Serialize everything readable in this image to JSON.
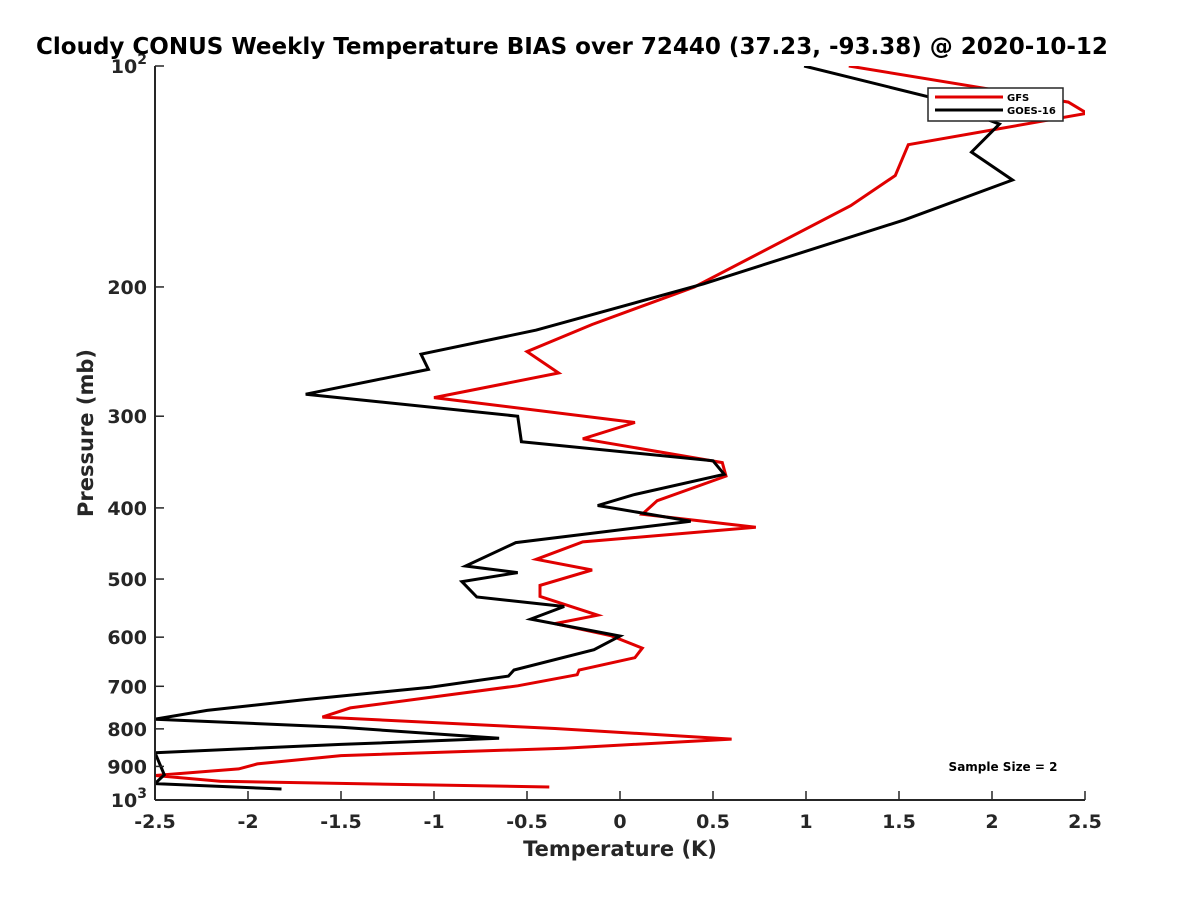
{
  "chart_data": {
    "type": "line",
    "title": "Cloudy CONUS Weekly Temperature BIAS over 72440 (37.23, -93.38) @ 2020-10-12",
    "xlabel": "Temperature (K)",
    "ylabel": "Pressure (mb)",
    "xlim": [
      -2.5,
      2.5
    ],
    "ylim": [
      100,
      1000
    ],
    "yscale": "log",
    "y_reversed": true,
    "grid": false,
    "legend_placement": "top-right",
    "annotation": "Sample Size = 2",
    "x_ticks": [
      -2.5,
      -2,
      -1.5,
      -1,
      -0.5,
      0,
      0.5,
      1,
      1.5,
      2,
      2.5
    ],
    "x_tick_labels": [
      "-2.5",
      "-2",
      "-1.5",
      "-1",
      "-0.5",
      "0",
      "0.5",
      "1",
      "1.5",
      "2",
      "2.5"
    ],
    "y_ticks": [
      100,
      200,
      300,
      400,
      500,
      600,
      700,
      800,
      900,
      1000
    ],
    "y_tick_labels": [
      {
        "base": "10",
        "exp": "2"
      },
      {
        "base": "200",
        "exp": ""
      },
      {
        "base": "300",
        "exp": ""
      },
      {
        "base": "400",
        "exp": ""
      },
      {
        "base": "500",
        "exp": ""
      },
      {
        "base": "600",
        "exp": ""
      },
      {
        "base": "700",
        "exp": ""
      },
      {
        "base": "800",
        "exp": ""
      },
      {
        "base": "900",
        "exp": ""
      },
      {
        "base": "10",
        "exp": "3"
      }
    ],
    "series": [
      {
        "name": "GFS",
        "color": "#e00000",
        "points": [
          [
            1.23,
            100
          ],
          [
            2.41,
            112
          ],
          [
            2.51,
            116
          ],
          [
            1.55,
            128
          ],
          [
            1.48,
            141
          ],
          [
            1.24,
            155
          ],
          [
            0.4,
            200
          ],
          [
            -0.15,
            225
          ],
          [
            -0.5,
            245
          ],
          [
            -0.33,
            262
          ],
          [
            -1.0,
            283
          ],
          [
            0.08,
            306
          ],
          [
            -0.2,
            322
          ],
          [
            0.55,
            347
          ],
          [
            0.57,
            362
          ],
          [
            0.2,
            391
          ],
          [
            0.12,
            408
          ],
          [
            0.73,
            425
          ],
          [
            -0.2,
            445
          ],
          [
            -0.45,
            470
          ],
          [
            -0.15,
            486
          ],
          [
            -0.43,
            510
          ],
          [
            -0.43,
            528
          ],
          [
            -0.12,
            560
          ],
          [
            -0.35,
            575
          ],
          [
            -0.05,
            597
          ],
          [
            0.12,
            621
          ],
          [
            0.08,
            640
          ],
          [
            -0.22,
            665
          ],
          [
            -0.23,
            675
          ],
          [
            -0.55,
            699
          ],
          [
            -1.45,
            749
          ],
          [
            -1.6,
            771
          ],
          [
            -0.35,
            799
          ],
          [
            0.6,
            826
          ],
          [
            -0.3,
            850
          ],
          [
            -1.5,
            870
          ],
          [
            -1.95,
            893
          ],
          [
            -2.05,
            907
          ],
          [
            -2.5,
            926
          ],
          [
            -2.15,
            943
          ],
          [
            -0.38,
            960
          ]
        ]
      },
      {
        "name": "GOES-16",
        "color": "#000000",
        "points": [
          [
            0.99,
            100
          ],
          [
            1.65,
            110
          ],
          [
            2.04,
            120
          ],
          [
            1.89,
            131
          ],
          [
            2.11,
            143
          ],
          [
            1.53,
            162
          ],
          [
            0.45,
            198
          ],
          [
            -0.45,
            229
          ],
          [
            -1.07,
            247
          ],
          [
            -1.03,
            259
          ],
          [
            -1.69,
            280
          ],
          [
            -0.55,
            300
          ],
          [
            -0.53,
            325
          ],
          [
            0.5,
            345
          ],
          [
            0.56,
            360
          ],
          [
            0.07,
            384
          ],
          [
            -0.12,
            397
          ],
          [
            0.38,
            417
          ],
          [
            -0.56,
            446
          ],
          [
            -0.83,
            480
          ],
          [
            -0.55,
            490
          ],
          [
            -0.85,
            504
          ],
          [
            -0.77,
            529
          ],
          [
            -0.3,
            545
          ],
          [
            -0.48,
            567
          ],
          [
            0,
            598
          ],
          [
            -0.14,
            624
          ],
          [
            -0.57,
            665
          ],
          [
            -0.6,
            678
          ],
          [
            -1.02,
            702
          ],
          [
            -1.7,
            730
          ],
          [
            -2.22,
            755
          ],
          [
            -2.5,
            776
          ],
          [
            -1.5,
            796
          ],
          [
            -0.65,
            824
          ],
          [
            -1.5,
            840
          ],
          [
            -2.5,
            862
          ],
          [
            -2.45,
            924
          ],
          [
            -2.5,
            950
          ],
          [
            -1.82,
            966
          ]
        ]
      }
    ]
  }
}
